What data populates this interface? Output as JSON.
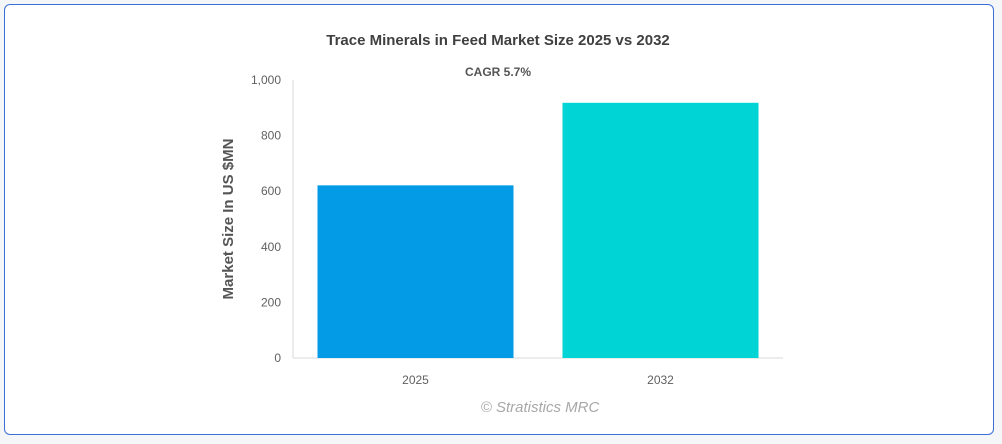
{
  "chart_data": {
    "type": "bar",
    "title": "Trace Minerals in Feed Market Size 2025 vs 2032",
    "subtitle": "CAGR 5.7%",
    "xlabel": "",
    "ylabel": "Market Size In US $MN",
    "categories": [
      "2025",
      "2032"
    ],
    "values": [
      621,
      918
    ],
    "colors": [
      "#039be5",
      "#00d4d4"
    ],
    "ylim": [
      0,
      1000
    ],
    "yticks": [
      "0",
      "200",
      "400",
      "600",
      "800",
      "1,000"
    ],
    "grid": false,
    "legend": "none"
  },
  "watermark": "© Stratistics MRC"
}
